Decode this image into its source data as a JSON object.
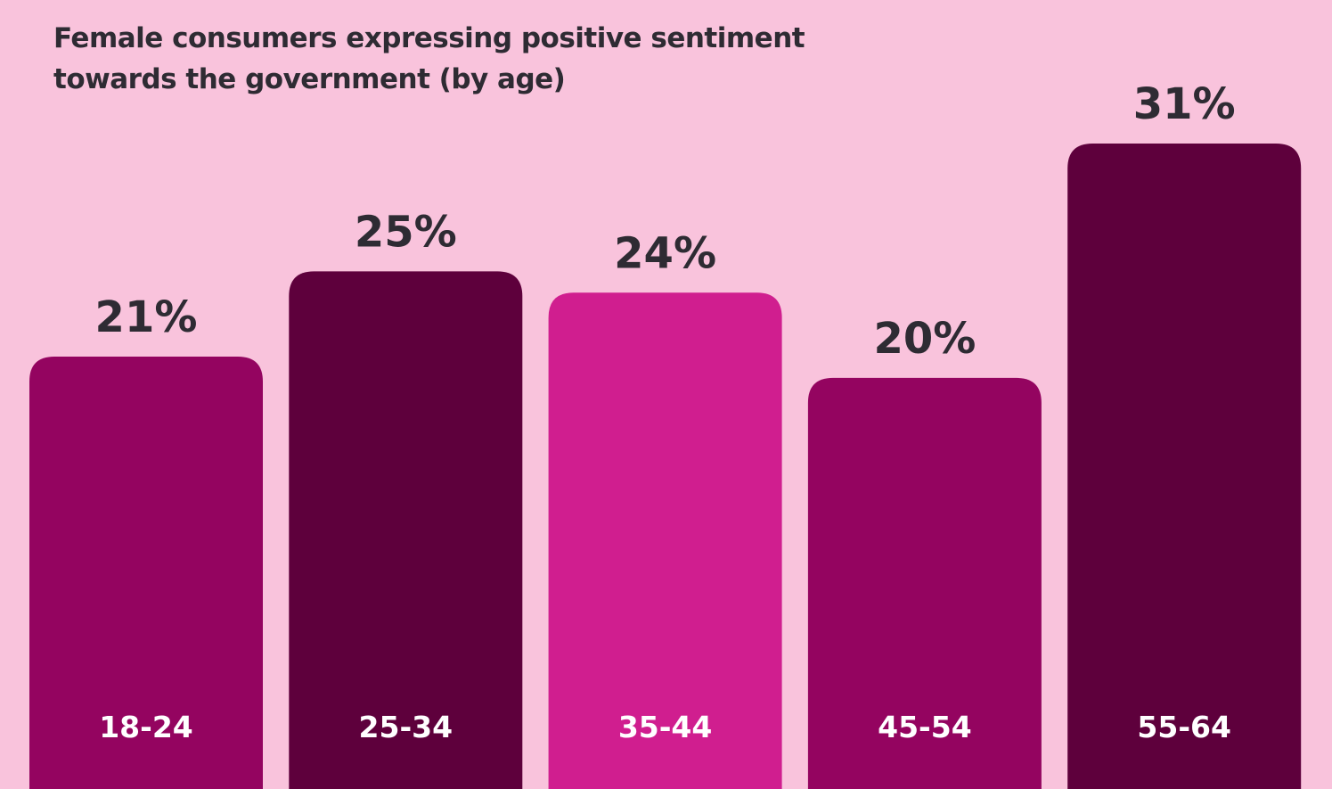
{
  "chart_data": {
    "type": "bar",
    "title": "Female consumers expressing positive sentiment towards the government (by age)",
    "title_lines": [
      "Female consumers expressing positive sentiment",
      "towards the government (by age)"
    ],
    "categories": [
      "18-24",
      "25-34",
      "35-44",
      "45-54",
      "55-64"
    ],
    "values": [
      21,
      25,
      24,
      20,
      31
    ],
    "value_labels": [
      "21%",
      "25%",
      "24%",
      "20%",
      "31%"
    ],
    "bar_colors": [
      "#940460",
      "#5e003c",
      "#d01e8f",
      "#940460",
      "#5e003c"
    ],
    "xlabel": "",
    "ylabel": "",
    "unit": "%",
    "grid": false,
    "legend": "none"
  },
  "colors": {
    "background": "#f9c3dc",
    "text": "#2e2b33",
    "category_label": "#ffffff"
  }
}
